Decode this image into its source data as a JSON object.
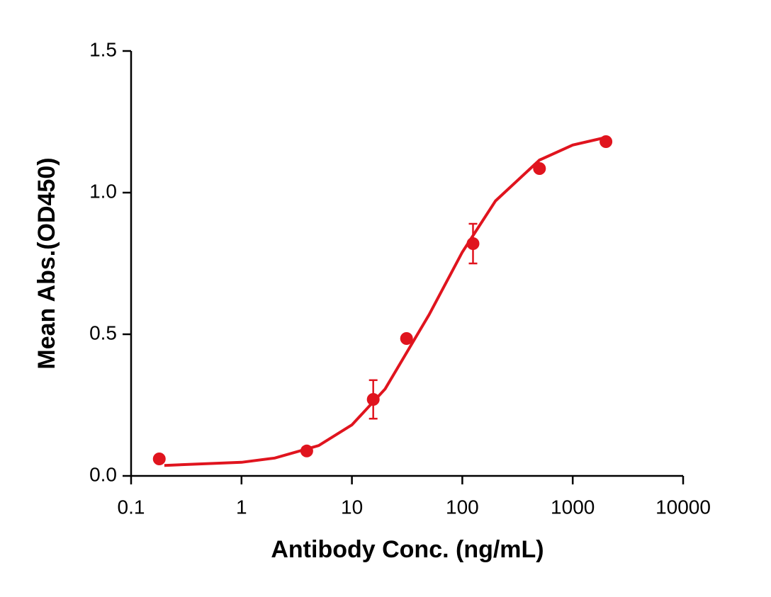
{
  "chart_data": {
    "type": "scatter",
    "x_label": "Antibody Conc. (ng/mL)",
    "y_label": "Mean Abs.(OD450)",
    "x_scale": "log",
    "color": "#e0141e",
    "x": [
      0.18,
      3.9,
      15.6,
      31.25,
      125,
      500,
      2000
    ],
    "values": [
      0.06,
      0.088,
      0.27,
      0.485,
      0.82,
      1.085,
      1.18
    ],
    "errors": [
      null,
      null,
      0.068,
      null,
      0.07,
      null,
      null
    ],
    "fit": {
      "x": [
        0.2,
        1,
        2,
        5,
        10,
        20,
        50,
        100,
        200,
        500,
        1000,
        2000
      ],
      "values": [
        0.037,
        0.048,
        0.063,
        0.107,
        0.18,
        0.307,
        0.569,
        0.79,
        0.971,
        1.115,
        1.168,
        1.195
      ]
    },
    "xlim": [
      0.1,
      10000
    ],
    "xticks": [
      0.1,
      1,
      10,
      100,
      1000,
      10000
    ],
    "ylim": [
      0,
      1.5
    ],
    "yticks": [
      {
        "value": 0,
        "label": "0.0"
      },
      0.5,
      {
        "value": 1,
        "label": "1.0"
      },
      1.5
    ]
  }
}
